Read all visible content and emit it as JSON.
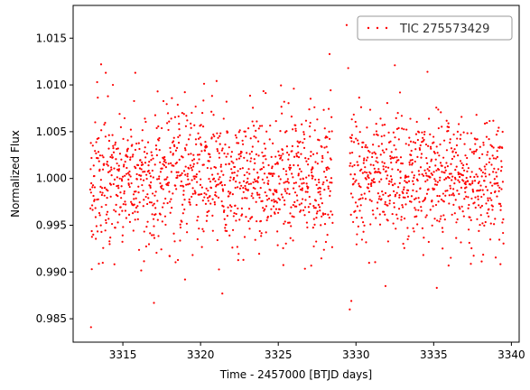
{
  "chart_data": {
    "type": "scatter",
    "xlabel": "Time - 2457000 [BTJD days]",
    "ylabel": "Normalized Flux",
    "xlim": [
      3311.8,
      3340.5
    ],
    "ylim": [
      0.9825,
      1.0185
    ],
    "xticks": [
      3315,
      3320,
      3325,
      3330,
      3335,
      3340
    ],
    "yticks": [
      0.985,
      0.99,
      0.995,
      1.0,
      1.005,
      1.01,
      1.015
    ],
    "ytick_labels": [
      "0.985",
      "0.990",
      "0.995",
      "1.000",
      "1.005",
      "1.010",
      "1.015"
    ],
    "grid": false,
    "legend_position": "top-right",
    "series": [
      {
        "name": "TIC 275573429",
        "color": "#ff0000",
        "marker": "dot",
        "x_start": 3312.9,
        "x_end": 3339.5,
        "gap": [
          3328.5,
          3329.6
        ],
        "baseline": 1.0,
        "scatter_std": 0.0035,
        "sample_points": [
          {
            "x": 3312.95,
            "y": 0.9841
          },
          {
            "x": 3313.0,
            "y": 0.9903
          },
          {
            "x": 3313.6,
            "y": 1.0122
          },
          {
            "x": 3313.9,
            "y": 1.0113
          },
          {
            "x": 3315.8,
            "y": 1.0113
          },
          {
            "x": 3317.0,
            "y": 0.9867
          },
          {
            "x": 3319.0,
            "y": 0.9892
          },
          {
            "x": 3321.4,
            "y": 0.9877
          },
          {
            "x": 3326.0,
            "y": 1.0096
          },
          {
            "x": 3328.3,
            "y": 1.0133
          },
          {
            "x": 3329.4,
            "y": 1.0164
          },
          {
            "x": 3329.5,
            "y": 1.0118
          },
          {
            "x": 3329.6,
            "y": 0.986
          },
          {
            "x": 3329.7,
            "y": 0.9869
          },
          {
            "x": 3331.9,
            "y": 0.9885
          },
          {
            "x": 3332.5,
            "y": 1.0121
          },
          {
            "x": 3334.6,
            "y": 1.0114
          },
          {
            "x": 3335.2,
            "y": 0.9883
          }
        ]
      }
    ]
  }
}
